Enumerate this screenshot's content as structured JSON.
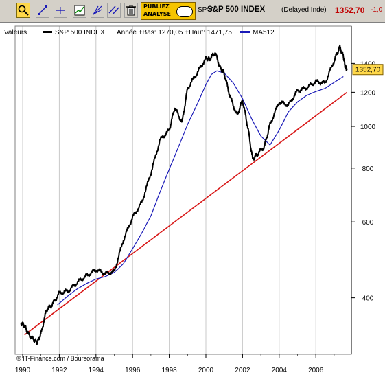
{
  "toolbar": {
    "buttons": [
      {
        "name": "zoom-tool-button",
        "icon": "magnifier-icon",
        "active": true
      },
      {
        "name": "trendline-tool-button",
        "icon": "trendline-icon",
        "active": false
      },
      {
        "name": "horizontal-line-tool-button",
        "icon": "horizontal-line-icon",
        "active": false
      },
      {
        "name": "indicator-tool-button",
        "icon": "indicator-chart-icon",
        "active": false
      },
      {
        "name": "fibonacci-tool-button",
        "icon": "fan-lines-icon",
        "active": false
      },
      {
        "name": "parallel-lines-tool-button",
        "icon": "parallel-lines-icon",
        "active": false
      },
      {
        "name": "delete-button",
        "icon": "trash-icon",
        "active": false
      }
    ],
    "ad_line1": "PUBLIEZ",
    "ad_line2": "ANALYSE",
    "ticker": "SP^A",
    "index_name": "S&P 500 INDEX",
    "delayed": "(Delayed Inde)",
    "price": "1352,70",
    "change": "-1,0"
  },
  "legend": {
    "prefix": "Valeurs",
    "series_label": "S&P 500 INDEX",
    "range_text": "Année +Bas: 1270,05 +Haut: 1471,75",
    "ma_label": "MA512"
  },
  "credit": "© IT-Finance.com / Boursorama",
  "colors": {
    "price_line": "#000000",
    "ma_line": "#1a1ab8",
    "trend_line": "#d81818",
    "last_price_tag": "#ffd84a"
  },
  "chart_data": {
    "type": "line",
    "scale": "log",
    "x_ticks": [
      "1990",
      "1992",
      "1994",
      "1996",
      "1998",
      "2000",
      "2002",
      "2004",
      "2006"
    ],
    "y_ticks": [
      400,
      600,
      800,
      1000,
      1200,
      1400
    ],
    "last_price_label": "1352,70",
    "grid": true,
    "series": [
      {
        "name": "S&P 500 INDEX",
        "x": [
          1989.9,
          1990.1,
          1990.3,
          1990.6,
          1990.8,
          1991.0,
          1991.3,
          1991.6,
          1992.0,
          1992.5,
          1993.0,
          1993.5,
          1994.0,
          1994.5,
          1995.0,
          1995.5,
          1996.0,
          1996.5,
          1997.0,
          1997.5,
          1998.0,
          1998.3,
          1998.7,
          1999.0,
          1999.5,
          2000.0,
          2000.2,
          2000.5,
          2000.8,
          2001.0,
          2001.3,
          2001.7,
          2002.0,
          2002.3,
          2002.55,
          2002.8,
          2003.2,
          2003.5,
          2004.0,
          2004.5,
          2005.0,
          2005.5,
          2006.0,
          2006.5,
          2007.0,
          2007.3,
          2007.5,
          2007.6,
          2007.7
        ],
        "y": [
          350,
          345,
          330,
          320,
          315,
          330,
          375,
          385,
          410,
          415,
          435,
          450,
          465,
          455,
          460,
          545,
          615,
          665,
          780,
          930,
          980,
          1105,
          1020,
          1225,
          1325,
          1440,
          1430,
          1485,
          1360,
          1330,
          1180,
          1060,
          1150,
          990,
          840,
          860,
          900,
          1010,
          1140,
          1120,
          1210,
          1230,
          1270,
          1260,
          1420,
          1530,
          1455,
          1380,
          1352.7
        ]
      },
      {
        "name": "MA512",
        "x": [
          1991.9,
          1992.5,
          1993.0,
          1993.5,
          1994.0,
          1994.5,
          1995.0,
          1995.5,
          1996.0,
          1996.5,
          1997.0,
          1997.5,
          1998.0,
          1998.5,
          1999.0,
          1999.5,
          2000.0,
          2000.3,
          2000.6,
          2001.0,
          2001.5,
          2002.0,
          2002.5,
          2003.0,
          2003.5,
          2004.0,
          2004.5,
          2005.0,
          2005.5,
          2006.0,
          2006.5,
          2007.0,
          2007.5
        ],
        "y": [
          385,
          405,
          420,
          432,
          442,
          448,
          458,
          480,
          520,
          565,
          620,
          705,
          795,
          895,
          1010,
          1120,
          1250,
          1320,
          1345,
          1330,
          1260,
          1160,
          1040,
          950,
          905,
          980,
          1080,
          1140,
          1180,
          1205,
          1225,
          1265,
          1305
        ]
      },
      {
        "name": "Trend line",
        "x": [
          1990.1,
          2007.7
        ],
        "y": [
          328,
          1200
        ]
      }
    ]
  }
}
